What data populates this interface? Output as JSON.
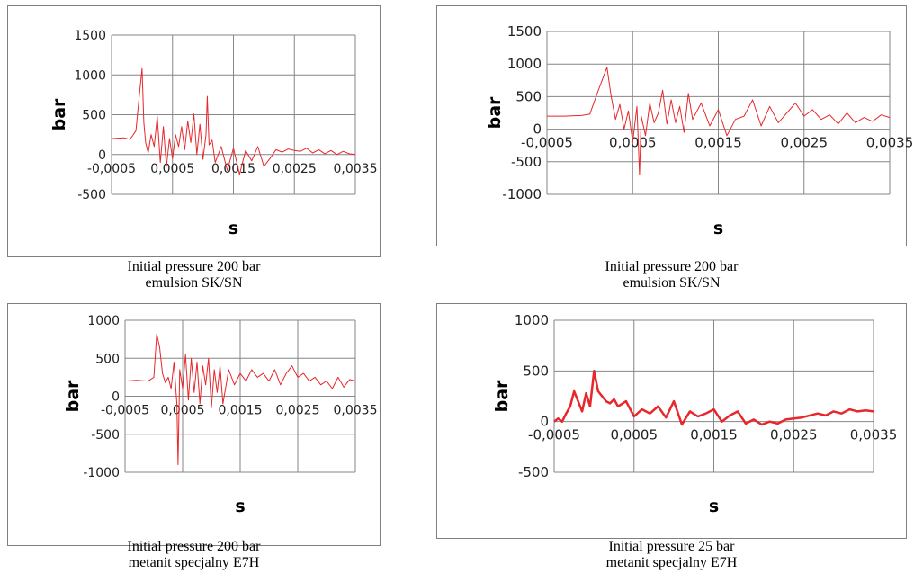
{
  "charts": [
    {
      "caption_line1": "Initial pressure 200 bar",
      "caption_line2": "emulsion SK/SN",
      "chart_data": {
        "type": "line",
        "xlabel": "s",
        "ylabel": "bar",
        "xlim": [
          -0.0005,
          0.0035
        ],
        "ylim": [
          -500,
          1500
        ],
        "xticks": [
          "-0,0005",
          "0,0005",
          "0,0015",
          "0,0025",
          "0,0035"
        ],
        "yticks": [
          "1500",
          "1000",
          "500",
          "0",
          "-500"
        ],
        "line_color": "#e8262b",
        "series": [
          {
            "x": [
              -0.0005,
              -0.0003,
              -0.0002,
              -0.00015,
              -0.0001,
              -5e-05,
              0.0,
              3e-05,
              6e-05,
              0.0001,
              0.00015,
              0.0002,
              0.00025,
              0.0003,
              0.00035,
              0.0004,
              0.00045,
              0.0005,
              0.00055,
              0.0006,
              0.00065,
              0.0007,
              0.00075,
              0.0008,
              0.00085,
              0.0009,
              0.00095,
              0.001,
              0.00105,
              0.00107,
              0.0011,
              0.00115,
              0.0012,
              0.0013,
              0.0014,
              0.0015,
              0.0016,
              0.0017,
              0.0018,
              0.0019,
              0.002,
              0.0021,
              0.0022,
              0.0023,
              0.0024,
              0.0025,
              0.0026,
              0.0027,
              0.0028,
              0.0029,
              0.003,
              0.0031,
              0.0032,
              0.0033,
              0.0034,
              0.0035
            ],
            "y": [
              200,
              210,
              190,
              240,
              300,
              700,
              1080,
              400,
              150,
              20,
              250,
              100,
              480,
              -100,
              350,
              -150,
              200,
              -50,
              250,
              100,
              350,
              60,
              420,
              150,
              510,
              0,
              380,
              -60,
              250,
              730,
              120,
              180,
              -100,
              100,
              -200,
              80,
              -250,
              50,
              -80,
              100,
              -150,
              -50,
              60,
              30,
              70,
              50,
              40,
              80,
              20,
              60,
              10,
              50,
              0,
              40,
              10,
              0
            ]
          }
        ]
      }
    },
    {
      "caption_line1": "Initial pressure 200 bar",
      "caption_line2": "emulsion SK/SN",
      "chart_data": {
        "type": "line",
        "xlabel": "s",
        "ylabel": "bar",
        "xlim": [
          -0.0005,
          0.0035
        ],
        "ylim": [
          -1000,
          1500
        ],
        "xticks": [
          "-0,0005",
          "0,0005",
          "0,0015",
          "0,0025",
          "0,0035"
        ],
        "yticks": [
          "1500",
          "1000",
          "500",
          "0",
          "-500",
          "-1000"
        ],
        "line_color": "#e8262b",
        "series": [
          {
            "x": [
              -0.0005,
              -0.0003,
              -0.0001,
              0.0,
              0.0001,
              0.0002,
              0.00025,
              0.0003,
              0.00035,
              0.0004,
              0.00045,
              0.0005,
              0.00055,
              0.00058,
              0.0006,
              0.00065,
              0.0007,
              0.00075,
              0.0008,
              0.00085,
              0.0009,
              0.00095,
              0.001,
              0.00105,
              0.0011,
              0.00115,
              0.0012,
              0.0013,
              0.0014,
              0.0015,
              0.0016,
              0.0017,
              0.0018,
              0.0019,
              0.002,
              0.0021,
              0.0022,
              0.0023,
              0.0024,
              0.0025,
              0.0026,
              0.0027,
              0.0028,
              0.0029,
              0.003,
              0.0031,
              0.0032,
              0.0033,
              0.0034,
              0.0035
            ],
            "y": [
              200,
              200,
              210,
              230,
              600,
              950,
              500,
              150,
              380,
              0,
              280,
              -200,
              350,
              -700,
              200,
              -100,
              400,
              100,
              250,
              600,
              80,
              450,
              100,
              350,
              -50,
              550,
              150,
              400,
              50,
              300,
              -100,
              150,
              200,
              450,
              50,
              350,
              100,
              250,
              400,
              200,
              300,
              150,
              220,
              80,
              250,
              100,
              180,
              120,
              220,
              180
            ]
          }
        ]
      }
    },
    {
      "caption_line1": "Initial pressure 200 bar",
      "caption_line2": "metanit specjalny E7H",
      "chart_data": {
        "type": "line",
        "xlabel": "s",
        "ylabel": "bar",
        "xlim": [
          -0.0005,
          0.0035
        ],
        "ylim": [
          -1000,
          1000
        ],
        "xticks": [
          "-0,0005",
          "0,0005",
          "0,0015",
          "0,0025",
          "0,0035"
        ],
        "yticks": [
          "1000",
          "500",
          "0",
          "-500",
          "-1000"
        ],
        "line_color": "#e8262b",
        "series": [
          {
            "x": [
              -0.0005,
              -0.0003,
              -0.0001,
              0.0,
              5e-05,
              0.0001,
              0.00015,
              0.0002,
              0.00025,
              0.0003,
              0.00035,
              0.0004,
              0.00042,
              0.00045,
              0.0005,
              0.00055,
              0.0006,
              0.00065,
              0.0007,
              0.00075,
              0.0008,
              0.00085,
              0.0009,
              0.00095,
              0.001,
              0.00105,
              0.0011,
              0.00115,
              0.0012,
              0.0013,
              0.0014,
              0.0015,
              0.0016,
              0.0017,
              0.0018,
              0.0019,
              0.002,
              0.0021,
              0.0022,
              0.0023,
              0.0024,
              0.0025,
              0.0026,
              0.0027,
              0.0028,
              0.0029,
              0.003,
              0.0031,
              0.0032,
              0.0033,
              0.0034,
              0.0035
            ],
            "y": [
              200,
              210,
              200,
              250,
              820,
              650,
              300,
              180,
              250,
              100,
              450,
              -100,
              -900,
              350,
              100,
              550,
              -50,
              500,
              50,
              450,
              -100,
              400,
              150,
              500,
              -150,
              350,
              50,
              400,
              -100,
              350,
              150,
              300,
              200,
              350,
              250,
              300,
              200,
              350,
              150,
              300,
              400,
              250,
              300,
              200,
              250,
              150,
              200,
              100,
              250,
              120,
              220,
              200
            ]
          }
        ]
      }
    },
    {
      "caption_line1": "Initial pressure 25 bar",
      "caption_line2": "metanit specjalny E7H",
      "chart_data": {
        "type": "line",
        "xlabel": "s",
        "ylabel": "bar",
        "xlim": [
          -0.0005,
          0.0035
        ],
        "ylim": [
          -500,
          1000
        ],
        "xticks": [
          "-0,0005",
          "0,0005",
          "0,0015",
          "0,0025",
          "0,0035"
        ],
        "yticks": [
          "1000",
          "500",
          "0",
          "-500"
        ],
        "line_color": "#e8262b",
        "series": [
          {
            "x": [
              -0.0005,
              -0.00045,
              -0.0004,
              -0.00035,
              -0.0003,
              -0.00025,
              -0.0002,
              -0.00015,
              -0.0001,
              -5e-05,
              0.0,
              5e-05,
              0.0001,
              0.00015,
              0.0002,
              0.00025,
              0.0003,
              0.0004,
              0.0005,
              0.0006,
              0.0007,
              0.0008,
              0.0009,
              0.001,
              0.0011,
              0.0012,
              0.0013,
              0.0014,
              0.0015,
              0.0016,
              0.0017,
              0.0018,
              0.0019,
              0.002,
              0.0021,
              0.0022,
              0.0023,
              0.0024,
              0.0025,
              0.0026,
              0.0027,
              0.0028,
              0.0029,
              0.003,
              0.0031,
              0.0032,
              0.0033,
              0.0034,
              0.0035
            ],
            "y": [
              0,
              30,
              0,
              80,
              150,
              300,
              200,
              100,
              280,
              150,
              500,
              300,
              250,
              200,
              180,
              220,
              150,
              200,
              50,
              120,
              80,
              150,
              40,
              200,
              -30,
              100,
              50,
              80,
              120,
              0,
              60,
              100,
              -20,
              20,
              -30,
              0,
              -20,
              20,
              30,
              40,
              60,
              80,
              60,
              100,
              80,
              120,
              100,
              110,
              100
            ]
          }
        ]
      }
    }
  ]
}
